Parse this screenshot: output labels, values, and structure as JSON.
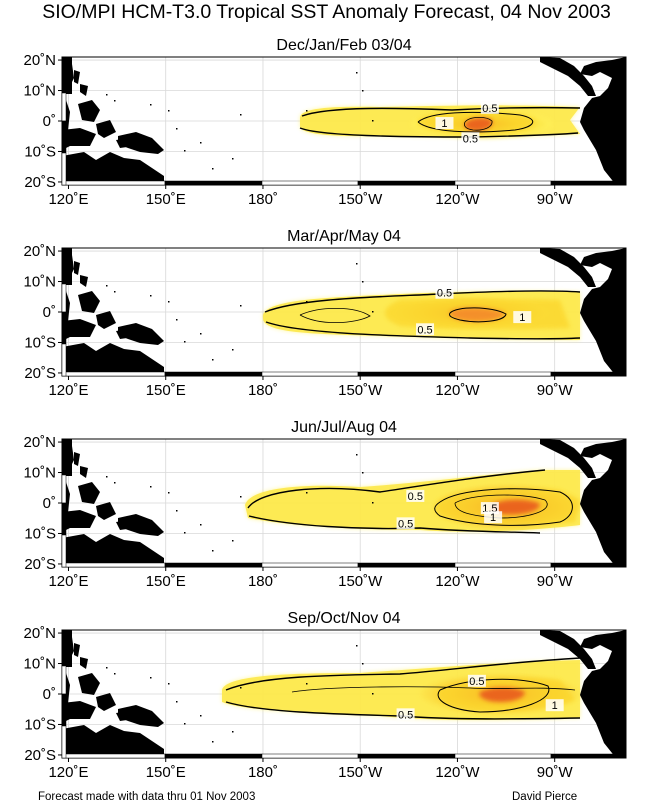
{
  "title": "SIO/MPI HCM-T3.0 Tropical SST Anomaly Forecast, 04 Nov 2003",
  "footer": {
    "left": "Forecast made with data thru 01 Nov 2003",
    "right": "David Pierce"
  },
  "axes": {
    "lat_labels": [
      "20˚N",
      "10˚N",
      "0˚",
      "10˚S",
      "20˚S"
    ],
    "lat_values": [
      20,
      10,
      0,
      -10,
      -20
    ],
    "lon_labels": [
      "120˚E",
      "150˚E",
      "180˚",
      "150˚W",
      "120˚W",
      "90˚W"
    ],
    "lon_values": [
      120,
      150,
      180,
      210,
      240,
      270
    ],
    "lon_range": [
      118,
      292
    ],
    "lat_range": [
      -21,
      21
    ]
  },
  "colors": {
    "land": "#000000",
    "anomaly_low": "#fff25a",
    "anomaly_mid": "#fbd52c",
    "anomaly_high": "#f59a25",
    "anomaly_peak": "#e8551e",
    "contour": "#000000"
  },
  "panels": [
    {
      "title": "Dec/Jan/Feb 03/04",
      "contours": [
        {
          "label": "0.5",
          "lon": 250,
          "lat": 4
        },
        {
          "label": "1",
          "lon": 236,
          "lat": -1
        },
        {
          "label": "0.5",
          "lon": 244,
          "lat": -6
        }
      ]
    },
    {
      "title": "Mar/Apr/May 04",
      "contours": [
        {
          "label": "0.5",
          "lon": 236,
          "lat": 6
        },
        {
          "label": "1",
          "lon": 260,
          "lat": -2
        },
        {
          "label": "0.5",
          "lon": 230,
          "lat": -6
        }
      ]
    },
    {
      "title": "Jun/Jul/Aug 04",
      "contours": [
        {
          "label": "0.5",
          "lon": 227,
          "lat": 2
        },
        {
          "label": "1.5",
          "lon": 250,
          "lat": -2
        },
        {
          "label": "1",
          "lon": 251,
          "lat": -5
        },
        {
          "label": "0.5",
          "lon": 224,
          "lat": -7
        }
      ]
    },
    {
      "title": "Sep/Oct/Nov 04",
      "contours": [
        {
          "label": "0.5",
          "lon": 246,
          "lat": 4
        },
        {
          "label": "1",
          "lon": 270,
          "lat": -4
        },
        {
          "label": "0.5",
          "lon": 224,
          "lat": -7
        }
      ]
    }
  ]
}
